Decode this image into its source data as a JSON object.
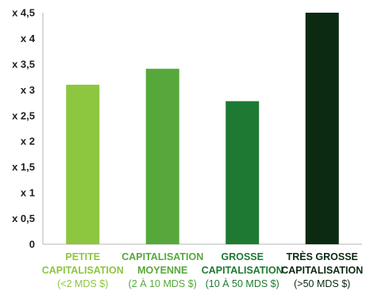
{
  "chart_data": {
    "type": "bar",
    "categories": [
      {
        "lines": [
          "PETITE",
          "CAPITALISATION",
          "(<2 MDS $)"
        ],
        "color": "#8dc63f"
      },
      {
        "lines": [
          "CAPITALISATION",
          "MOYENNE",
          "(2 À 10 MDS $)"
        ],
        "color": "#56a83a"
      },
      {
        "lines": [
          "GROSSE",
          "CAPITALISATION",
          "(10 À 50 MDS $)"
        ],
        "color": "#1e7a32"
      },
      {
        "lines": [
          "TRÈS GROSSE",
          "CAPITALISATION",
          "(>50 MDS $)"
        ],
        "color": "#0c2a12"
      }
    ],
    "values": [
      3.1,
      3.41,
      2.78,
      4.5
    ],
    "ylim": [
      0,
      4.5
    ],
    "yticks": [
      {
        "value": 0,
        "label": "0"
      },
      {
        "value": 0.5,
        "label": "x 0,5"
      },
      {
        "value": 1,
        "label": "x 1"
      },
      {
        "value": 1.5,
        "label": "x 1,5"
      },
      {
        "value": 2,
        "label": "x 2"
      },
      {
        "value": 2.5,
        "label": "x 2,5"
      },
      {
        "value": 3,
        "label": "x 3"
      },
      {
        "value": 3.5,
        "label": "x 3,5"
      },
      {
        "value": 4,
        "label": "x 4"
      },
      {
        "value": 4.5,
        "label": "x 4,5"
      }
    ],
    "grid": false,
    "axis_color": "#b5b5b5"
  }
}
